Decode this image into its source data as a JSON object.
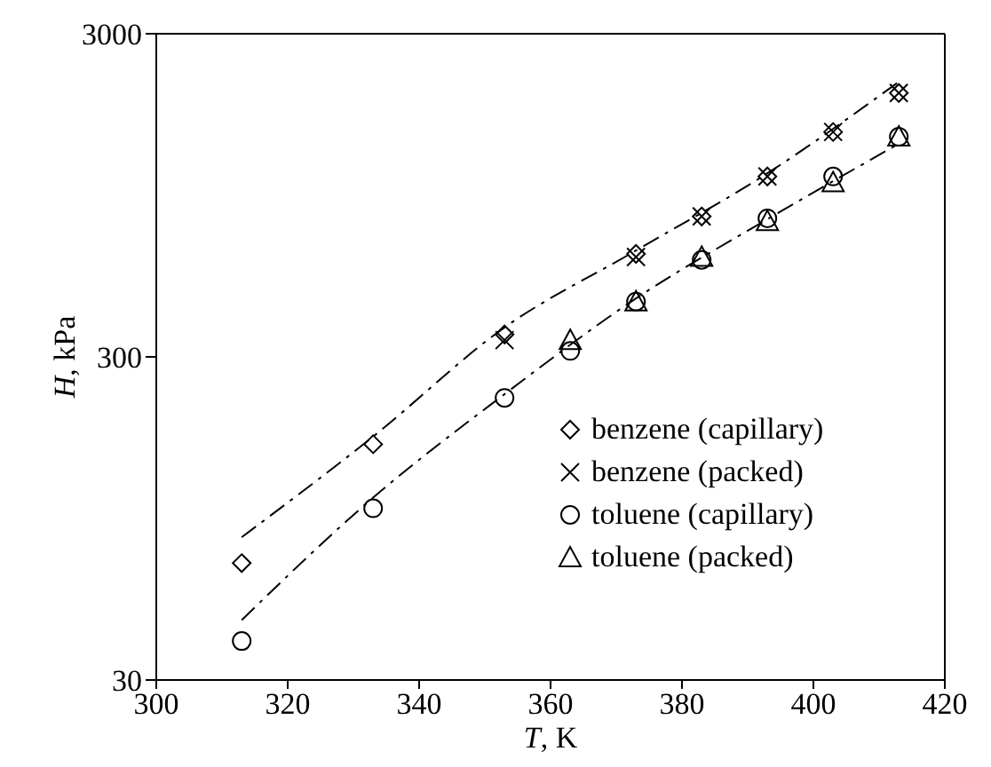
{
  "chart_data": {
    "type": "scatter",
    "xlabel": "T, K",
    "ylabel": "H, kPa",
    "log": "y",
    "xlim": [
      300,
      420
    ],
    "xticks": [
      300,
      320,
      340,
      360,
      380,
      400,
      420
    ],
    "ylim": [
      30,
      3000
    ],
    "yticks": [
      30,
      300,
      3000
    ],
    "grid": false,
    "legend": "bottom right",
    "series": [
      {
        "name": "benzene (capillary)",
        "color": "#000000",
        "marker": "diamond",
        "x": [
          313,
          333,
          353,
          373,
          383,
          393,
          403,
          413
        ],
        "values": [
          69,
          161,
          352,
          625,
          816,
          1085,
          1490,
          1967
        ]
      },
      {
        "name": "benzene (packed)",
        "color": "#000000",
        "marker": "cross",
        "x": [
          353,
          373,
          383,
          393,
          403,
          413
        ],
        "values": [
          338,
          611,
          816,
          1085,
          1490,
          1967
        ]
      },
      {
        "name": "toluene (capillary)",
        "color": "#000000",
        "marker": "circle",
        "x": [
          313,
          333,
          353,
          363,
          373,
          383,
          393,
          403,
          413
        ],
        "values": [
          39.6,
          102,
          224,
          313,
          445,
          599,
          805,
          1085,
          1440
        ]
      },
      {
        "name": "toluene (packed)",
        "color": "#000000",
        "marker": "triangle",
        "x": [
          363,
          373,
          383,
          393,
          403,
          413
        ],
        "values": [
          338,
          445,
          611,
          789,
          1040,
          1440
        ]
      },
      {
        "type": "line",
        "color": "#000000",
        "line_style": "dashed",
        "marker": "none",
        "x": [
          313,
          333,
          353,
          373,
          393,
          413
        ],
        "values": [
          83,
          170,
          370,
          640,
          1110,
          2130
        ]
      },
      {
        "type": "line",
        "color": "#000000",
        "line_style": "dashed",
        "marker": "none",
        "x": [
          313,
          333,
          353,
          373,
          393,
          413
        ],
        "values": [
          46,
          110,
          230,
          455,
          800,
          1370
        ]
      }
    ]
  }
}
